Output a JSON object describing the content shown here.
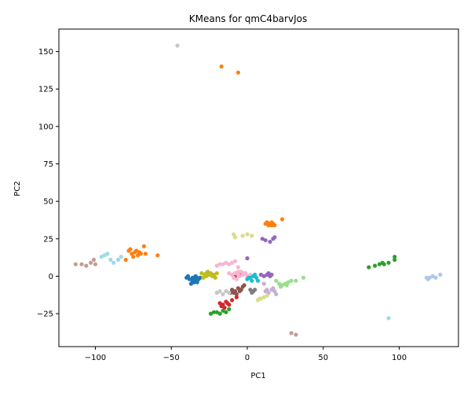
{
  "chart_data": {
    "type": "scatter",
    "title": "KMeans for qmC4barvJos",
    "xlabel": "PC1",
    "ylabel": "PC2",
    "xlim": [
      -124,
      139
    ],
    "ylim": [
      -47,
      165
    ],
    "x_ticks": [
      -100,
      -50,
      0,
      50,
      100
    ],
    "y_ticks": [
      -25,
      0,
      25,
      50,
      75,
      100,
      125,
      150
    ],
    "grid": false,
    "legend": "none",
    "series": [
      {
        "color": "#1f77b4",
        "points": [
          [
            -40,
            -1
          ],
          [
            -38,
            -2
          ],
          [
            -36,
            -1
          ],
          [
            -35,
            -3
          ],
          [
            -34,
            0
          ],
          [
            -37,
            -5
          ],
          [
            -33,
            -4
          ],
          [
            -32,
            -2
          ],
          [
            -36,
            -3
          ],
          [
            -39,
            0
          ],
          [
            -34,
            -2
          ],
          [
            -31,
            -1
          ],
          [
            -35,
            -4
          ],
          [
            -33,
            -1
          ]
        ]
      },
      {
        "color": "#aec7e8",
        "points": [
          [
            118,
            -1
          ],
          [
            120,
            -1
          ],
          [
            122,
            0
          ],
          [
            124,
            -1
          ],
          [
            127,
            1
          ],
          [
            119,
            -2
          ]
        ]
      },
      {
        "color": "#ff7f0e",
        "points": [
          [
            -78,
            17
          ],
          [
            -76,
            15
          ],
          [
            -74,
            16
          ],
          [
            -72,
            14
          ],
          [
            -70,
            15
          ],
          [
            -75,
            13
          ],
          [
            -68,
            20
          ],
          [
            -80,
            11
          ],
          [
            -77,
            18
          ],
          [
            -73,
            17
          ],
          [
            -71,
            16
          ],
          [
            -59,
            14
          ],
          [
            -67,
            15
          ]
        ]
      },
      {
        "color": "#ffbb78",
        "points": []
      },
      {
        "color": "#2ca02c",
        "points": [
          [
            -24,
            -25
          ],
          [
            -22,
            -24
          ],
          [
            -20,
            -24
          ],
          [
            -18,
            -25
          ],
          [
            -16,
            -23
          ],
          [
            -14,
            -24
          ],
          [
            -12,
            -22
          ],
          [
            80,
            6
          ],
          [
            84,
            7
          ],
          [
            87,
            8
          ],
          [
            90,
            8
          ],
          [
            93,
            9
          ],
          [
            97,
            11
          ],
          [
            97,
            13
          ],
          [
            89,
            9
          ]
        ]
      },
      {
        "color": "#98df8a",
        "points": [
          [
            19,
            -3
          ],
          [
            21,
            -5
          ],
          [
            23,
            -6
          ],
          [
            25,
            -5
          ],
          [
            27,
            -4
          ],
          [
            29,
            -3
          ],
          [
            32,
            -3
          ],
          [
            37,
            -1
          ],
          [
            22,
            -7
          ],
          [
            26,
            -6
          ]
        ]
      },
      {
        "color": "#d62728",
        "points": [
          [
            -18,
            -18
          ],
          [
            -16,
            -19
          ],
          [
            -14,
            -17
          ],
          [
            -12,
            -19
          ],
          [
            -10,
            -16
          ],
          [
            -17,
            -20
          ],
          [
            -13,
            -18
          ],
          [
            -15,
            -21
          ],
          [
            -7,
            -14
          ],
          [
            -5,
            1
          ],
          [
            -8,
            0
          ],
          [
            -17,
            -19
          ]
        ]
      },
      {
        "color": "#ff9896",
        "points": []
      },
      {
        "color": "#9467bd",
        "points": [
          [
            10,
            25
          ],
          [
            12,
            24
          ],
          [
            15,
            23
          ],
          [
            17,
            25
          ],
          [
            18,
            26
          ],
          [
            9,
            1
          ],
          [
            11,
            0
          ],
          [
            13,
            1
          ],
          [
            15,
            0
          ],
          [
            16,
            1
          ],
          [
            14,
            2
          ],
          [
            0,
            12
          ]
        ]
      },
      {
        "color": "#c5b0d5",
        "points": [
          [
            12,
            -10
          ],
          [
            14,
            -11
          ],
          [
            16,
            -9
          ],
          [
            18,
            -10
          ],
          [
            19,
            -12
          ],
          [
            11,
            -5
          ],
          [
            17,
            -8
          ],
          [
            13,
            -9
          ]
        ]
      },
      {
        "color": "#8c564b",
        "points": [
          [
            -10,
            -9
          ],
          [
            -8,
            -10
          ],
          [
            -6,
            -8
          ],
          [
            -4,
            -9
          ],
          [
            -3,
            -7
          ],
          [
            -11,
            -11
          ],
          [
            -7,
            -12
          ],
          [
            -5,
            -10
          ],
          [
            -9,
            -11
          ],
          [
            -2,
            -6
          ]
        ]
      },
      {
        "color": "#c49c94",
        "points": [
          [
            -113,
            8
          ],
          [
            -109,
            8
          ],
          [
            -106,
            7
          ],
          [
            -103,
            9
          ],
          [
            -101,
            11
          ],
          [
            -100,
            8
          ],
          [
            29,
            -38
          ],
          [
            32,
            -39
          ]
        ]
      },
      {
        "color": "#e377c2",
        "points": []
      },
      {
        "color": "#f7b6d2",
        "points": [
          [
            -20,
            7
          ],
          [
            -18,
            8
          ],
          [
            -16,
            8
          ],
          [
            -14,
            9
          ],
          [
            -12,
            8
          ],
          [
            -10,
            9
          ],
          [
            -8,
            10
          ],
          [
            -6,
            6
          ],
          [
            -12,
            2
          ],
          [
            -10,
            1
          ],
          [
            -8,
            2
          ],
          [
            -6,
            1
          ],
          [
            -4,
            3
          ],
          [
            -2,
            2
          ],
          [
            0,
            0
          ],
          [
            2,
            1
          ],
          [
            -9,
            -1
          ],
          [
            -7,
            -2
          ],
          [
            -5,
            0
          ],
          [
            -3,
            1
          ],
          [
            -1,
            2
          ],
          [
            -6,
            3
          ]
        ]
      },
      {
        "color": "#7f7f7f",
        "points": [
          [
            2,
            -9
          ],
          [
            3,
            -11
          ],
          [
            4,
            -10
          ],
          [
            5,
            -9
          ],
          [
            3,
            -10
          ]
        ]
      },
      {
        "color": "#c7c7c7",
        "points": [
          [
            -46,
            154
          ],
          [
            -20,
            -11
          ],
          [
            -18,
            -10
          ],
          [
            -16,
            -12
          ],
          [
            -14,
            -10
          ],
          [
            -12,
            -11
          ]
        ]
      },
      {
        "color": "#bcbd22",
        "points": [
          [
            -30,
            2
          ],
          [
            -28,
            1
          ],
          [
            -26,
            3
          ],
          [
            -24,
            2
          ],
          [
            -22,
            1
          ],
          [
            -20,
            2
          ],
          [
            -29,
            -1
          ],
          [
            -27,
            0
          ],
          [
            -25,
            1
          ],
          [
            -23,
            0
          ],
          [
            -21,
            -1
          ],
          [
            -27,
            2
          ]
        ]
      },
      {
        "color": "#dbdb8d",
        "points": [
          [
            -9,
            28
          ],
          [
            -8,
            26
          ],
          [
            -3,
            27
          ],
          [
            0,
            28
          ],
          [
            3,
            27
          ],
          [
            7,
            -16
          ],
          [
            9,
            -15
          ],
          [
            11,
            -14
          ],
          [
            13,
            -13
          ],
          [
            8,
            -15
          ]
        ]
      },
      {
        "color": "#17becf",
        "points": [
          [
            0,
            -2
          ],
          [
            2,
            -1
          ],
          [
            4,
            0
          ],
          [
            6,
            -1
          ],
          [
            3,
            -3
          ],
          [
            7,
            -3
          ],
          [
            5,
            1
          ],
          [
            1,
            -1
          ]
        ]
      },
      {
        "color": "#9edae5",
        "points": [
          [
            -96,
            13
          ],
          [
            -94,
            14
          ],
          [
            -92,
            15
          ],
          [
            -90,
            11
          ],
          [
            -88,
            9
          ],
          [
            -85,
            11
          ],
          [
            -83,
            13
          ],
          [
            93,
            -28
          ]
        ]
      },
      {
        "color": "#ff7f0e",
        "points": [
          [
            12,
            35
          ],
          [
            13,
            36
          ],
          [
            14,
            34
          ],
          [
            15,
            35
          ],
          [
            16,
            36
          ],
          [
            17,
            35
          ],
          [
            18,
            34
          ],
          [
            14,
            35
          ],
          [
            16,
            34
          ],
          [
            23,
            38
          ],
          [
            -17,
            140
          ],
          [
            -6,
            136
          ]
        ]
      }
    ]
  }
}
